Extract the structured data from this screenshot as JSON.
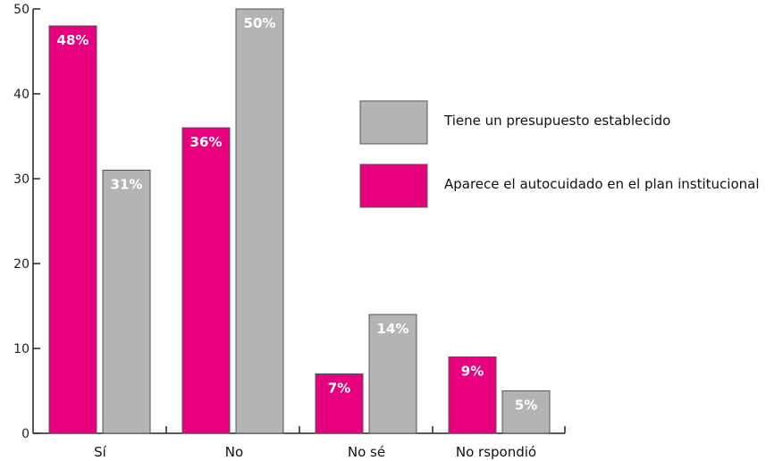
{
  "chart_data": {
    "type": "bar",
    "categories": [
      "Sí",
      "No",
      "No sé",
      "No rspondió"
    ],
    "series": [
      {
        "name": "Aparece el autocuidado en el plan institucional",
        "color": "#e6007e",
        "values": [
          48,
          36,
          7,
          9
        ],
        "labels": [
          "48%",
          "36%",
          "7%",
          "9%"
        ]
      },
      {
        "name": "Tiene un presupuesto establecido",
        "color": "#b4b4b4",
        "values": [
          31,
          50,
          14,
          5
        ],
        "labels": [
          "31%",
          "50%",
          "14%",
          "5%"
        ]
      }
    ],
    "ylim": [
      0,
      50
    ],
    "yticks": [
      "0",
      "10",
      "20",
      "30",
      "40",
      "50"
    ],
    "legend": {
      "position": "right",
      "order": [
        "Tiene un presupuesto establecido",
        "Aparece el autocuidado en el plan institucional"
      ]
    },
    "grid": false
  }
}
